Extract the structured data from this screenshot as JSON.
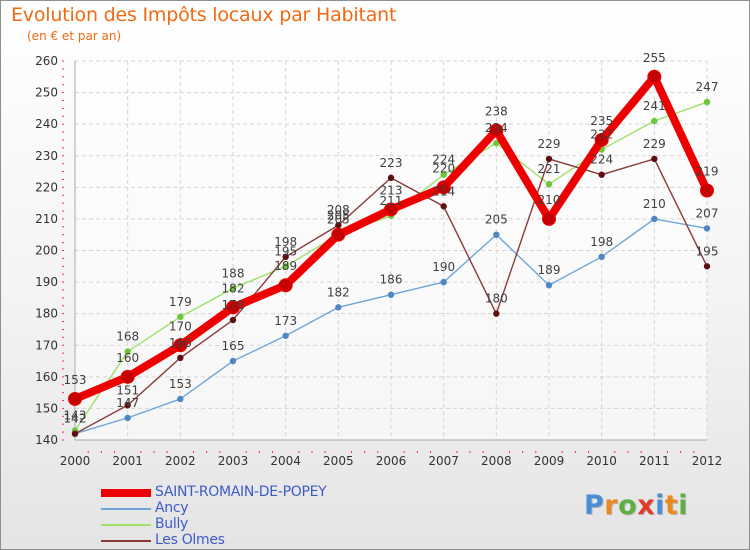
{
  "header": {
    "title": "Evolution des Impôts locaux par Habitant",
    "subtitle": "(en € et par an)"
  },
  "brand": {
    "text": "Proxiti",
    "letters": [
      "P",
      "r",
      "o",
      "x",
      "i",
      "t",
      "i"
    ],
    "colors": [
      "#4a8ed6",
      "#e98a1e",
      "#5fb043",
      "#e23b2a",
      "#4a8ed6",
      "#e98a1e",
      "#5fb043"
    ]
  },
  "chart_data": {
    "type": "line",
    "title": "Evolution des Impôts locaux par Habitant",
    "subtitle": "(en € et par an)",
    "xlabel": "",
    "ylabel": "",
    "x": [
      "2000",
      "2001",
      "2002",
      "2003",
      "2004",
      "2005",
      "2006",
      "2007",
      "2008",
      "2009",
      "2010",
      "2011",
      "2012"
    ],
    "ylim": [
      140,
      260
    ],
    "yticks": [
      "140",
      "150",
      "160",
      "170",
      "180",
      "190",
      "200",
      "210",
      "220",
      "230",
      "240",
      "250",
      "260"
    ],
    "grid": true,
    "series": [
      {
        "name": "SAINT-ROMAIN-DE-POPEY",
        "values": [
          153,
          160,
          170,
          182,
          189,
          205,
          213,
          220,
          238,
          210,
          235,
          255,
          219
        ],
        "labels": [
          "153",
          "160",
          "170",
          "182",
          "189",
          "205",
          "213",
          "220",
          "238",
          "210",
          "235",
          "255",
          "219"
        ],
        "color": "#ee0000",
        "marker_color": "#c40000"
      },
      {
        "name": "Ancy",
        "values": [
          142,
          147,
          153,
          165,
          173,
          182,
          186,
          190,
          205,
          189,
          198,
          210,
          207
        ],
        "labels": [
          "142",
          "147",
          "153",
          "165",
          "173",
          "182",
          "186",
          "190",
          "205",
          "189",
          "198",
          "210",
          "207"
        ],
        "color": "#6ea6d8",
        "marker_color": "#4f86c3"
      },
      {
        "name": "Bully",
        "values": [
          143,
          168,
          179,
          188,
          195,
          205,
          211,
          224,
          234,
          221,
          232,
          241,
          247
        ],
        "labels": [
          "143",
          "168",
          "179",
          "188",
          "195",
          "205",
          "211",
          "224",
          "234",
          "221",
          "232",
          "241",
          "247"
        ],
        "color": "#9ee06a",
        "marker_color": "#6cc63b"
      },
      {
        "name": "Les Olmes",
        "values": [
          142,
          151,
          166,
          178,
          198,
          208,
          223,
          214,
          180,
          229,
          224,
          229,
          195
        ],
        "labels": [
          "142",
          "151",
          "166",
          "178",
          "198",
          "208",
          "223",
          "214",
          "180",
          "229",
          "224",
          "229",
          "195"
        ],
        "color": "#8a3a3a",
        "marker_color": "#5e1010"
      }
    ]
  }
}
